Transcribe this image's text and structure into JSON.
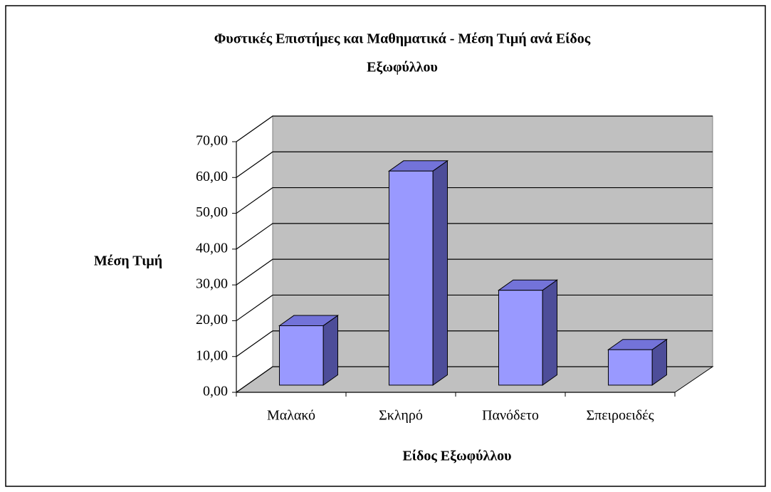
{
  "chart_data": {
    "type": "bar3d",
    "title": "Φυστικές Επιστήμες και Μαθηματικά - Μέση Τιμή ανά Είδος Εξωφύλλου",
    "title_lines": [
      "Φυστικές Επιστήμες και Μαθηματικά - Μέση Τιμή ανά Είδος",
      "Εξωφύλλου"
    ],
    "x_label": "Είδος Εξωφύλλου",
    "y_label": "Μέση Τιμή",
    "categories": [
      "Μαλακό",
      "Σκληρό",
      "Πανόδετο",
      "Σπειροειδές"
    ],
    "values": [
      16.6,
      59.8,
      26.5,
      9.9
    ],
    "color": "#9999ff",
    "ylim": [
      0,
      70
    ],
    "yticks": [
      {
        "value": 0,
        "label": "0,00"
      },
      {
        "value": 10,
        "label": "10,00"
      },
      {
        "value": 20,
        "label": "20,00"
      },
      {
        "value": 30,
        "label": "30,00"
      },
      {
        "value": 40,
        "label": "40,00"
      },
      {
        "value": 50,
        "label": "50,00"
      },
      {
        "value": 60,
        "label": "60,00"
      },
      {
        "value": 70,
        "label": "70,00"
      }
    ],
    "grid": true
  }
}
